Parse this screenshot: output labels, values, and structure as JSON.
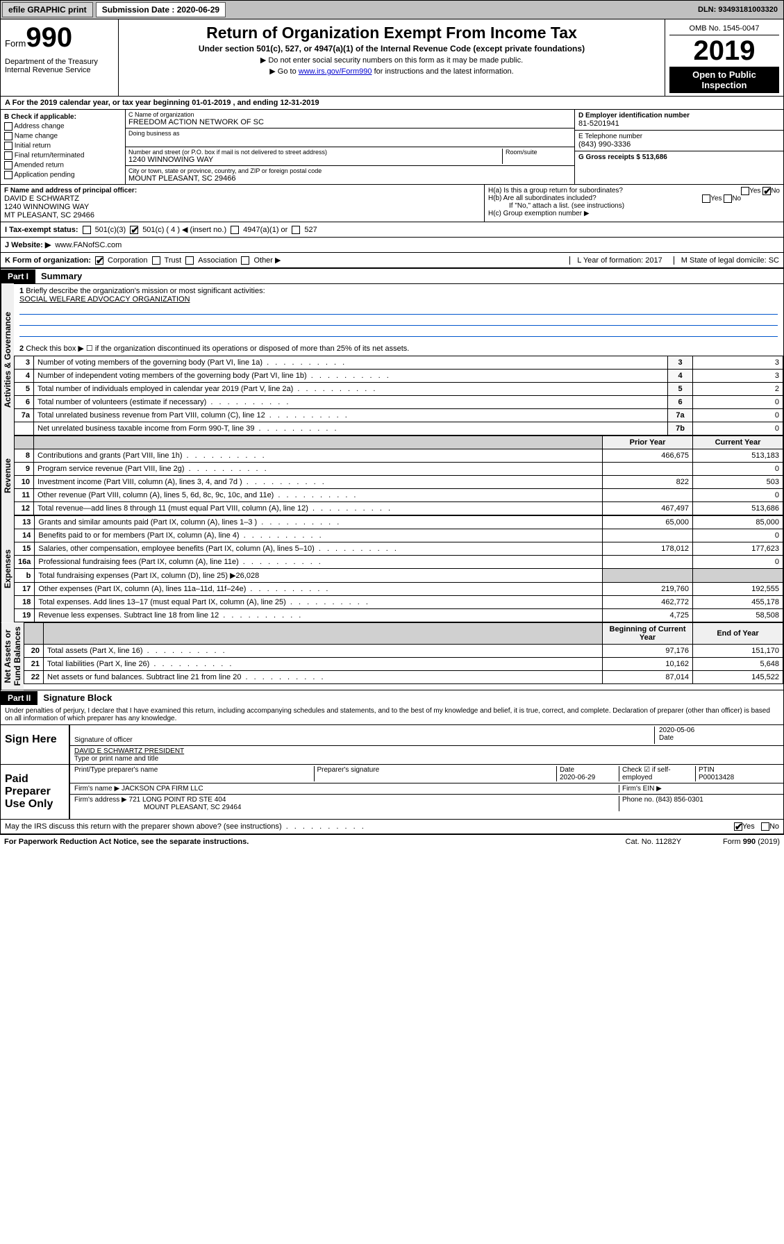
{
  "topbar": {
    "efile": "efile GRAPHIC print",
    "sub_label": "Submission Date : 2020-06-29",
    "dln": "DLN: 93493181003320"
  },
  "header": {
    "form_word": "Form",
    "form_num": "990",
    "dept": "Department of the Treasury\nInternal Revenue Service",
    "title": "Return of Organization Exempt From Income Tax",
    "subtitle": "Under section 501(c), 527, or 4947(a)(1) of the Internal Revenue Code (except private foundations)",
    "note1": "▶ Do not enter social security numbers on this form as it may be made public.",
    "note2_pre": "▶ Go to ",
    "note2_link": "www.irs.gov/Form990",
    "note2_post": " for instructions and the latest information.",
    "omb": "OMB No. 1545-0047",
    "year": "2019",
    "open": "Open to Public Inspection"
  },
  "taxyear": "For the 2019 calendar year, or tax year beginning 01-01-2019    , and ending 12-31-2019",
  "b": {
    "title": "B Check if applicable:",
    "items": [
      "Address change",
      "Name change",
      "Initial return",
      "Final return/terminated",
      "Amended return",
      "Application pending"
    ]
  },
  "c": {
    "name_lbl": "C Name of organization",
    "name": "FREEDOM ACTION NETWORK OF SC",
    "dba_lbl": "Doing business as",
    "street_lbl": "Number and street (or P.O. box if mail is not delivered to street address)",
    "street": "1240 WINNOWING WAY",
    "room_lbl": "Room/suite",
    "city_lbl": "City or town, state or province, country, and ZIP or foreign postal code",
    "city": "MOUNT PLEASANT, SC  29466"
  },
  "d": {
    "lbl": "D Employer identification number",
    "val": "81-5201941"
  },
  "e": {
    "lbl": "E Telephone number",
    "val": "(843) 990-3336"
  },
  "g": {
    "lbl": "G Gross receipts $ 513,686"
  },
  "f": {
    "lbl": "F Name and address of principal officer:",
    "name": "DAVID E SCHWARTZ",
    "addr1": "1240 WINNOWING WAY",
    "addr2": "MT PLEASANT, SC  29466"
  },
  "h": {
    "a": "H(a)  Is this a group return for subordinates?",
    "b": "H(b)  Are all subordinates included?",
    "b_note": "If \"No,\" attach a list. (see instructions)",
    "c": "H(c)  Group exemption number ▶"
  },
  "i": {
    "lbl": "I  Tax-exempt status:",
    "o1": "501(c)(3)",
    "o2": "501(c) ( 4 ) ◀ (insert no.)",
    "o3": "4947(a)(1) or",
    "o4": "527"
  },
  "j": {
    "lbl": "J  Website: ▶",
    "val": "www.FANofSC.com"
  },
  "k": {
    "lbl": "K Form of organization:",
    "o1": "Corporation",
    "o2": "Trust",
    "o3": "Association",
    "o4": "Other ▶"
  },
  "l": {
    "lbl": "L Year of formation: 2017"
  },
  "m": {
    "lbl": "M State of legal domicile: SC"
  },
  "part1": {
    "hdr": "Part I",
    "title": "Summary"
  },
  "summary": {
    "q1": "Briefly describe the organization's mission or most significant activities:",
    "q1_ans": "SOCIAL WELFARE ADVOCACY ORGANIZATION",
    "q2": "Check this box ▶ ☐  if the organization discontinued its operations or disposed of more than 25% of its net assets.",
    "rows_gov": [
      {
        "n": "3",
        "d": "Number of voting members of the governing body (Part VI, line 1a)",
        "box": "3",
        "v": "3"
      },
      {
        "n": "4",
        "d": "Number of independent voting members of the governing body (Part VI, line 1b)",
        "box": "4",
        "v": "3"
      },
      {
        "n": "5",
        "d": "Total number of individuals employed in calendar year 2019 (Part V, line 2a)",
        "box": "5",
        "v": "2"
      },
      {
        "n": "6",
        "d": "Total number of volunteers (estimate if necessary)",
        "box": "6",
        "v": "0"
      },
      {
        "n": "7a",
        "d": "Total unrelated business revenue from Part VIII, column (C), line 12",
        "box": "7a",
        "v": "0"
      },
      {
        "n": "",
        "d": "Net unrelated business taxable income from Form 990-T, line 39",
        "box": "7b",
        "v": "0"
      }
    ],
    "col_prior": "Prior Year",
    "col_current": "Current Year",
    "rows_rev": [
      {
        "n": "8",
        "d": "Contributions and grants (Part VIII, line 1h)",
        "p": "466,675",
        "c": "513,183"
      },
      {
        "n": "9",
        "d": "Program service revenue (Part VIII, line 2g)",
        "p": "",
        "c": "0"
      },
      {
        "n": "10",
        "d": "Investment income (Part VIII, column (A), lines 3, 4, and 7d )",
        "p": "822",
        "c": "503"
      },
      {
        "n": "11",
        "d": "Other revenue (Part VIII, column (A), lines 5, 6d, 8c, 9c, 10c, and 11e)",
        "p": "",
        "c": "0"
      },
      {
        "n": "12",
        "d": "Total revenue—add lines 8 through 11 (must equal Part VIII, column (A), line 12)",
        "p": "467,497",
        "c": "513,686"
      }
    ],
    "rows_exp": [
      {
        "n": "13",
        "d": "Grants and similar amounts paid (Part IX, column (A), lines 1–3 )",
        "p": "65,000",
        "c": "85,000"
      },
      {
        "n": "14",
        "d": "Benefits paid to or for members (Part IX, column (A), line 4)",
        "p": "",
        "c": "0"
      },
      {
        "n": "15",
        "d": "Salaries, other compensation, employee benefits (Part IX, column (A), lines 5–10)",
        "p": "178,012",
        "c": "177,623"
      },
      {
        "n": "16a",
        "d": "Professional fundraising fees (Part IX, column (A), line 11e)",
        "p": "",
        "c": "0"
      },
      {
        "n": "b",
        "d": "Total fundraising expenses (Part IX, column (D), line 25) ▶26,028",
        "p": null,
        "c": null
      },
      {
        "n": "17",
        "d": "Other expenses (Part IX, column (A), lines 11a–11d, 11f–24e)",
        "p": "219,760",
        "c": "192,555"
      },
      {
        "n": "18",
        "d": "Total expenses. Add lines 13–17 (must equal Part IX, column (A), line 25)",
        "p": "462,772",
        "c": "455,178"
      },
      {
        "n": "19",
        "d": "Revenue less expenses. Subtract line 18 from line 12",
        "p": "4,725",
        "c": "58,508"
      }
    ],
    "col_begin": "Beginning of Current Year",
    "col_end": "End of Year",
    "rows_net": [
      {
        "n": "20",
        "d": "Total assets (Part X, line 16)",
        "p": "97,176",
        "c": "151,170"
      },
      {
        "n": "21",
        "d": "Total liabilities (Part X, line 26)",
        "p": "10,162",
        "c": "5,648"
      },
      {
        "n": "22",
        "d": "Net assets or fund balances. Subtract line 21 from line 20",
        "p": "87,014",
        "c": "145,522"
      }
    ]
  },
  "vtabs": {
    "gov": "Activities & Governance",
    "rev": "Revenue",
    "exp": "Expenses",
    "net": "Net Assets or\nFund Balances"
  },
  "part2": {
    "hdr": "Part II",
    "title": "Signature Block"
  },
  "sig": {
    "perjury": "Under penalties of perjury, I declare that I have examined this return, including accompanying schedules and statements, and to the best of my knowledge and belief, it is true, correct, and complete. Declaration of preparer (other than officer) is based on all information of which preparer has any knowledge.",
    "sign_here": "Sign Here",
    "sig_officer": "Signature of officer",
    "sig_date": "2020-05-06",
    "date_lbl": "Date",
    "name_title": "DAVID E SCHWARTZ  PRESIDENT",
    "name_title_lbl": "Type or print name and title",
    "paid": "Paid Preparer Use Only",
    "prep_name_lbl": "Print/Type preparer's name",
    "prep_sig_lbl": "Preparer's signature",
    "prep_date_lbl": "Date",
    "prep_date": "2020-06-29",
    "self_emp": "Check ☑ if self-employed",
    "ptin_lbl": "PTIN",
    "ptin": "P00013428",
    "firm_name_lbl": "Firm's name   ▶",
    "firm_name": "JACKSON CPA FIRM LLC",
    "firm_ein_lbl": "Firm's EIN ▶",
    "firm_addr_lbl": "Firm's address ▶",
    "firm_addr": "721 LONG POINT RD STE 404",
    "firm_city": "MOUNT PLEASANT, SC  29464",
    "phone_lbl": "Phone no. (843) 856-0301",
    "discuss": "May the IRS discuss this return with the preparer shown above? (see instructions)",
    "yes": "Yes",
    "no": "No"
  },
  "footer": {
    "pra": "For Paperwork Reduction Act Notice, see the separate instructions.",
    "cat": "Cat. No. 11282Y",
    "form": "Form 990 (2019)"
  }
}
